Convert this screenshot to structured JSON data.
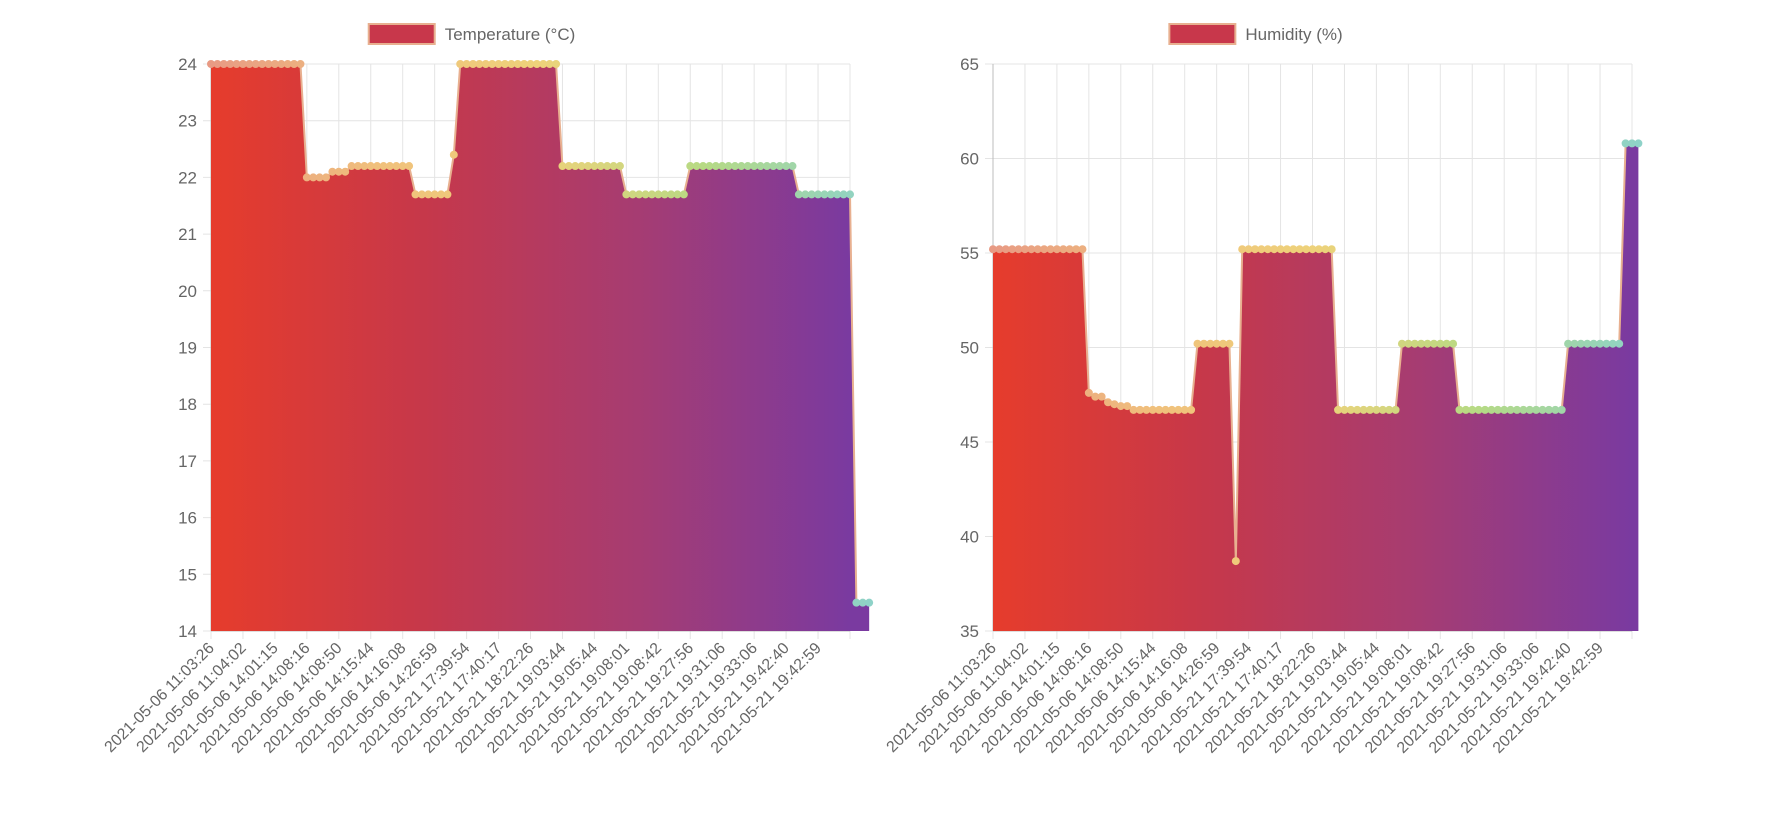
{
  "colors": {
    "gradient": [
      "#e63c2c",
      "#c6384a",
      "#a63c72",
      "#7a3aa0"
    ],
    "point_gradient": [
      "#e89a84",
      "#f0c07c",
      "#eed27a",
      "#b6da84",
      "#8ed2c8"
    ],
    "line": "#e8b090",
    "legend_swatch": "#c8374b",
    "legend_border": "#e8b090",
    "grid": "#e4e4e4",
    "axis_text": "#666666"
  },
  "chart_data": [
    {
      "type": "area",
      "legend": "Temperature (°C)",
      "legend_placement": "top",
      "ylim": [
        14,
        24
      ],
      "yticks": [
        14,
        15,
        16,
        17,
        18,
        19,
        20,
        21,
        22,
        23,
        24
      ],
      "grid": true,
      "x_tick_labels": [
        "2021-05-06 11:03:26",
        "2021-05-06 11:04:02",
        "2021-05-06 14:01:15",
        "2021-05-06 14:08:16",
        "2021-05-06 14:08:50",
        "2021-05-06 14:15:44",
        "2021-05-06 14:16:08",
        "2021-05-06 14:26:59",
        "2021-05-21 17:39:54",
        "2021-05-21 17:40:17",
        "2021-05-21 18:22:26",
        "2021-05-21 19:03:44",
        "2021-05-21 19:05:44",
        "2021-05-21 19:08:01",
        "2021-05-21 19:08:42",
        "2021-05-21 19:27:56",
        "2021-05-21 19:31:06",
        "2021-05-21 19:33:06",
        "2021-05-21 19:42:40",
        "2021-05-21 19:42:59"
      ],
      "points_per_tick": 5,
      "values": [
        24,
        24,
        24,
        24,
        24,
        24,
        24,
        24,
        24,
        24,
        24,
        24,
        24,
        24,
        24,
        22,
        22,
        22,
        22,
        22.1,
        22.1,
        22.1,
        22.2,
        22.2,
        22.2,
        22.2,
        22.2,
        22.2,
        22.2,
        22.2,
        22.2,
        22.2,
        21.7,
        21.7,
        21.7,
        21.7,
        21.7,
        21.7,
        22.4,
        24,
        24,
        24,
        24,
        24,
        24,
        24,
        24,
        24,
        24,
        24,
        24,
        24,
        24,
        24,
        24,
        22.2,
        22.2,
        22.2,
        22.2,
        22.2,
        22.2,
        22.2,
        22.2,
        22.2,
        22.2,
        21.7,
        21.7,
        21.7,
        21.7,
        21.7,
        21.7,
        21.7,
        21.7,
        21.7,
        21.7,
        22.2,
        22.2,
        22.2,
        22.2,
        22.2,
        22.2,
        22.2,
        22.2,
        22.2,
        22.2,
        22.2,
        22.2,
        22.2,
        22.2,
        22.2,
        22.2,
        22.2,
        21.7,
        21.7,
        21.7,
        21.7,
        21.7,
        21.7,
        21.7,
        21.7,
        21.7,
        14.5,
        14.5,
        14.5
      ]
    },
    {
      "type": "area",
      "legend": "Humidity (%)",
      "legend_placement": "top",
      "ylim": [
        35,
        65
      ],
      "yticks": [
        35,
        40,
        45,
        50,
        55,
        60,
        65
      ],
      "grid": true,
      "x_tick_labels": [
        "2021-05-06 11:03:26",
        "2021-05-06 11:04:02",
        "2021-05-06 14:01:15",
        "2021-05-06 14:08:16",
        "2021-05-06 14:08:50",
        "2021-05-06 14:15:44",
        "2021-05-06 14:16:08",
        "2021-05-06 14:26:59",
        "2021-05-21 17:39:54",
        "2021-05-21 17:40:17",
        "2021-05-21 18:22:26",
        "2021-05-21 19:03:44",
        "2021-05-21 19:05:44",
        "2021-05-21 19:08:01",
        "2021-05-21 19:08:42",
        "2021-05-21 19:27:56",
        "2021-05-21 19:31:06",
        "2021-05-21 19:33:06",
        "2021-05-21 19:42:40",
        "2021-05-21 19:42:59"
      ],
      "points_per_tick": 5,
      "values": [
        55.2,
        55.2,
        55.2,
        55.2,
        55.2,
        55.2,
        55.2,
        55.2,
        55.2,
        55.2,
        55.2,
        55.2,
        55.2,
        55.2,
        55.2,
        47.6,
        47.4,
        47.4,
        47.1,
        47.0,
        46.9,
        46.9,
        46.7,
        46.7,
        46.7,
        46.7,
        46.7,
        46.7,
        46.7,
        46.7,
        46.7,
        46.7,
        50.2,
        50.2,
        50.2,
        50.2,
        50.2,
        50.2,
        38.7,
        55.2,
        55.2,
        55.2,
        55.2,
        55.2,
        55.2,
        55.2,
        55.2,
        55.2,
        55.2,
        55.2,
        55.2,
        55.2,
        55.2,
        55.2,
        46.7,
        46.7,
        46.7,
        46.7,
        46.7,
        46.7,
        46.7,
        46.7,
        46.7,
        46.7,
        50.2,
        50.2,
        50.2,
        50.2,
        50.2,
        50.2,
        50.2,
        50.2,
        50.2,
        46.7,
        46.7,
        46.7,
        46.7,
        46.7,
        46.7,
        46.7,
        46.7,
        46.7,
        46.7,
        46.7,
        46.7,
        46.7,
        46.7,
        46.7,
        46.7,
        46.7,
        50.2,
        50.2,
        50.2,
        50.2,
        50.2,
        50.2,
        50.2,
        50.2,
        50.2,
        60.8,
        60.8,
        60.8
      ]
    }
  ]
}
